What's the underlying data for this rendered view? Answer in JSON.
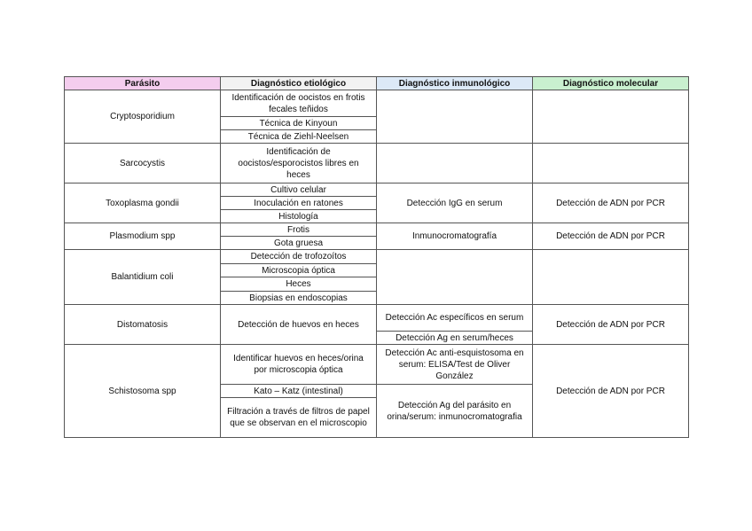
{
  "colors": {
    "header_parasito": "#f4cdee",
    "header_etiologico": "#f2f2f2",
    "header_inmunologico": "#dce9f7",
    "header_molecular": "#c9f0cf"
  },
  "headers": [
    "Parásito",
    "Diagnóstico etiológico",
    "Diagnóstico inmunológico",
    "Diagnóstico molecular"
  ],
  "rows": [
    {
      "parasito": "Cryptosporidium",
      "etiologico": [
        "Identificación de oocistos en frotis fecales teñidos",
        "Técnica de Kinyoun",
        "Técnica de Ziehl-Neelsen"
      ],
      "inmunologico": [],
      "molecular": ""
    },
    {
      "parasito": "Sarcocystis",
      "etiologico": [
        "Identificación de oocistos/esporocistos libres en heces"
      ],
      "inmunologico": [],
      "molecular": ""
    },
    {
      "parasito": "Toxoplasma gondii",
      "etiologico": [
        "Cultivo celular",
        "Inoculación en ratones",
        "Histología"
      ],
      "inmunologico": [
        "Detección IgG en serum"
      ],
      "molecular": "Detección de ADN por PCR"
    },
    {
      "parasito": "Plasmodium spp",
      "etiologico": [
        "Frotis",
        "Gota gruesa"
      ],
      "inmunologico": [
        "Inmunocromatografía"
      ],
      "molecular": "Detección de ADN por PCR"
    },
    {
      "parasito": "Balantidium coli",
      "etiologico": [
        "Detección de trofozoítos",
        "Microscopia óptica",
        "Heces",
        "Biopsias en endoscopias"
      ],
      "inmunologico": [],
      "molecular": ""
    },
    {
      "parasito": "Distomatosis",
      "etiologico": [
        "Detección de huevos en heces"
      ],
      "inmunologico": [
        "Detección Ac específicos en serum",
        "Detección Ag en serum/heces"
      ],
      "molecular": "Detección de ADN por PCR"
    },
    {
      "parasito": "Schistosoma spp",
      "etiologico": [
        "Identificar huevos en heces/orina por microscopia óptica",
        "Kato – Katz (intestinal)",
        "Filtración a través de filtros de papel que se observan en el microscopio"
      ],
      "inmunologico": [
        "Detección Ac anti-esquistosoma en serum: ELISA/Test de Oliver González",
        "Detección Ag del parásito en orina/serum: inmunocromatografia"
      ],
      "molecular": "Detección de ADN por PCR"
    }
  ]
}
